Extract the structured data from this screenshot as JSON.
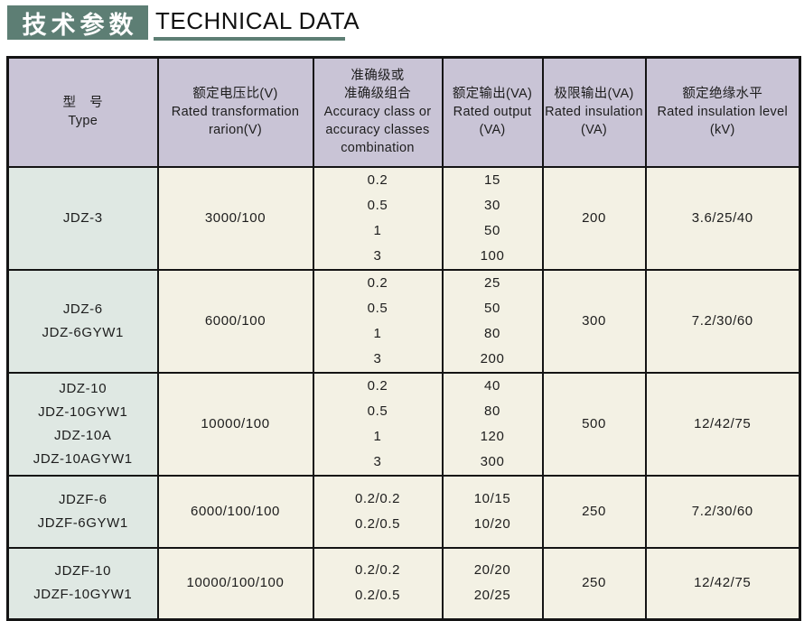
{
  "header": {
    "title_zh": "技术参数",
    "title_en": "TECHNICAL DATA"
  },
  "colors": {
    "accent_green": "#5d7e74",
    "header_bg": "#c9c4d6",
    "type_column_bg": "#dfe8e3",
    "cell_bg": "#f3f1e4",
    "border": "#141414",
    "text": "#1d1d1d"
  },
  "table": {
    "headers": [
      {
        "id": "type",
        "lines": [
          "型　号",
          "Type"
        ]
      },
      {
        "id": "rated-ratio",
        "lines": [
          "额定电压比(V)",
          "Rated transformation",
          "rarion(V)"
        ]
      },
      {
        "id": "accuracy-class",
        "lines": [
          "准确级或",
          "准确级组合",
          "Accuracy class or",
          "accuracy classes",
          "combination"
        ]
      },
      {
        "id": "rated-output",
        "lines": [
          "额定输出(VA)",
          "Rated output",
          "(VA)"
        ]
      },
      {
        "id": "limit-output",
        "lines": [
          "极限输出(VA)",
          "Rated insulation",
          "(VA)"
        ]
      },
      {
        "id": "insulation-level",
        "lines": [
          "额定绝缘水平",
          "Rated insulation level",
          "(kV)"
        ]
      }
    ],
    "rows": [
      {
        "cells": [
          [
            "JDZ-3"
          ],
          [
            "3000/100"
          ],
          [
            "0.2",
            "0.5",
            "1",
            "3"
          ],
          [
            "15",
            "30",
            "50",
            "100"
          ],
          [
            "200"
          ],
          [
            "3.6/25/40"
          ]
        ]
      },
      {
        "cells": [
          [
            "JDZ-6",
            "JDZ-6GYW1"
          ],
          [
            "6000/100"
          ],
          [
            "0.2",
            "0.5",
            "1",
            "3"
          ],
          [
            "25",
            "50",
            "80",
            "200"
          ],
          [
            "300"
          ],
          [
            "7.2/30/60"
          ]
        ]
      },
      {
        "cells": [
          [
            "JDZ-10",
            "JDZ-10GYW1",
            "JDZ-10A",
            "JDZ-10AGYW1"
          ],
          [
            "10000/100"
          ],
          [
            "0.2",
            "0.5",
            "1",
            "3"
          ],
          [
            "40",
            "80",
            "120",
            "300"
          ],
          [
            "500"
          ],
          [
            "12/42/75"
          ]
        ]
      },
      {
        "cells": [
          [
            "JDZF-6",
            "JDZF-6GYW1"
          ],
          [
            "6000/100/100"
          ],
          [
            "0.2/0.2",
            "0.2/0.5"
          ],
          [
            "10/15",
            "10/20"
          ],
          [
            "250"
          ],
          [
            "7.2/30/60"
          ]
        ]
      },
      {
        "cells": [
          [
            "JDZF-10",
            "JDZF-10GYW1"
          ],
          [
            "10000/100/100"
          ],
          [
            "0.2/0.2",
            "0.2/0.5"
          ],
          [
            "20/20",
            "20/25"
          ],
          [
            "250"
          ],
          [
            "12/42/75"
          ]
        ]
      }
    ]
  }
}
